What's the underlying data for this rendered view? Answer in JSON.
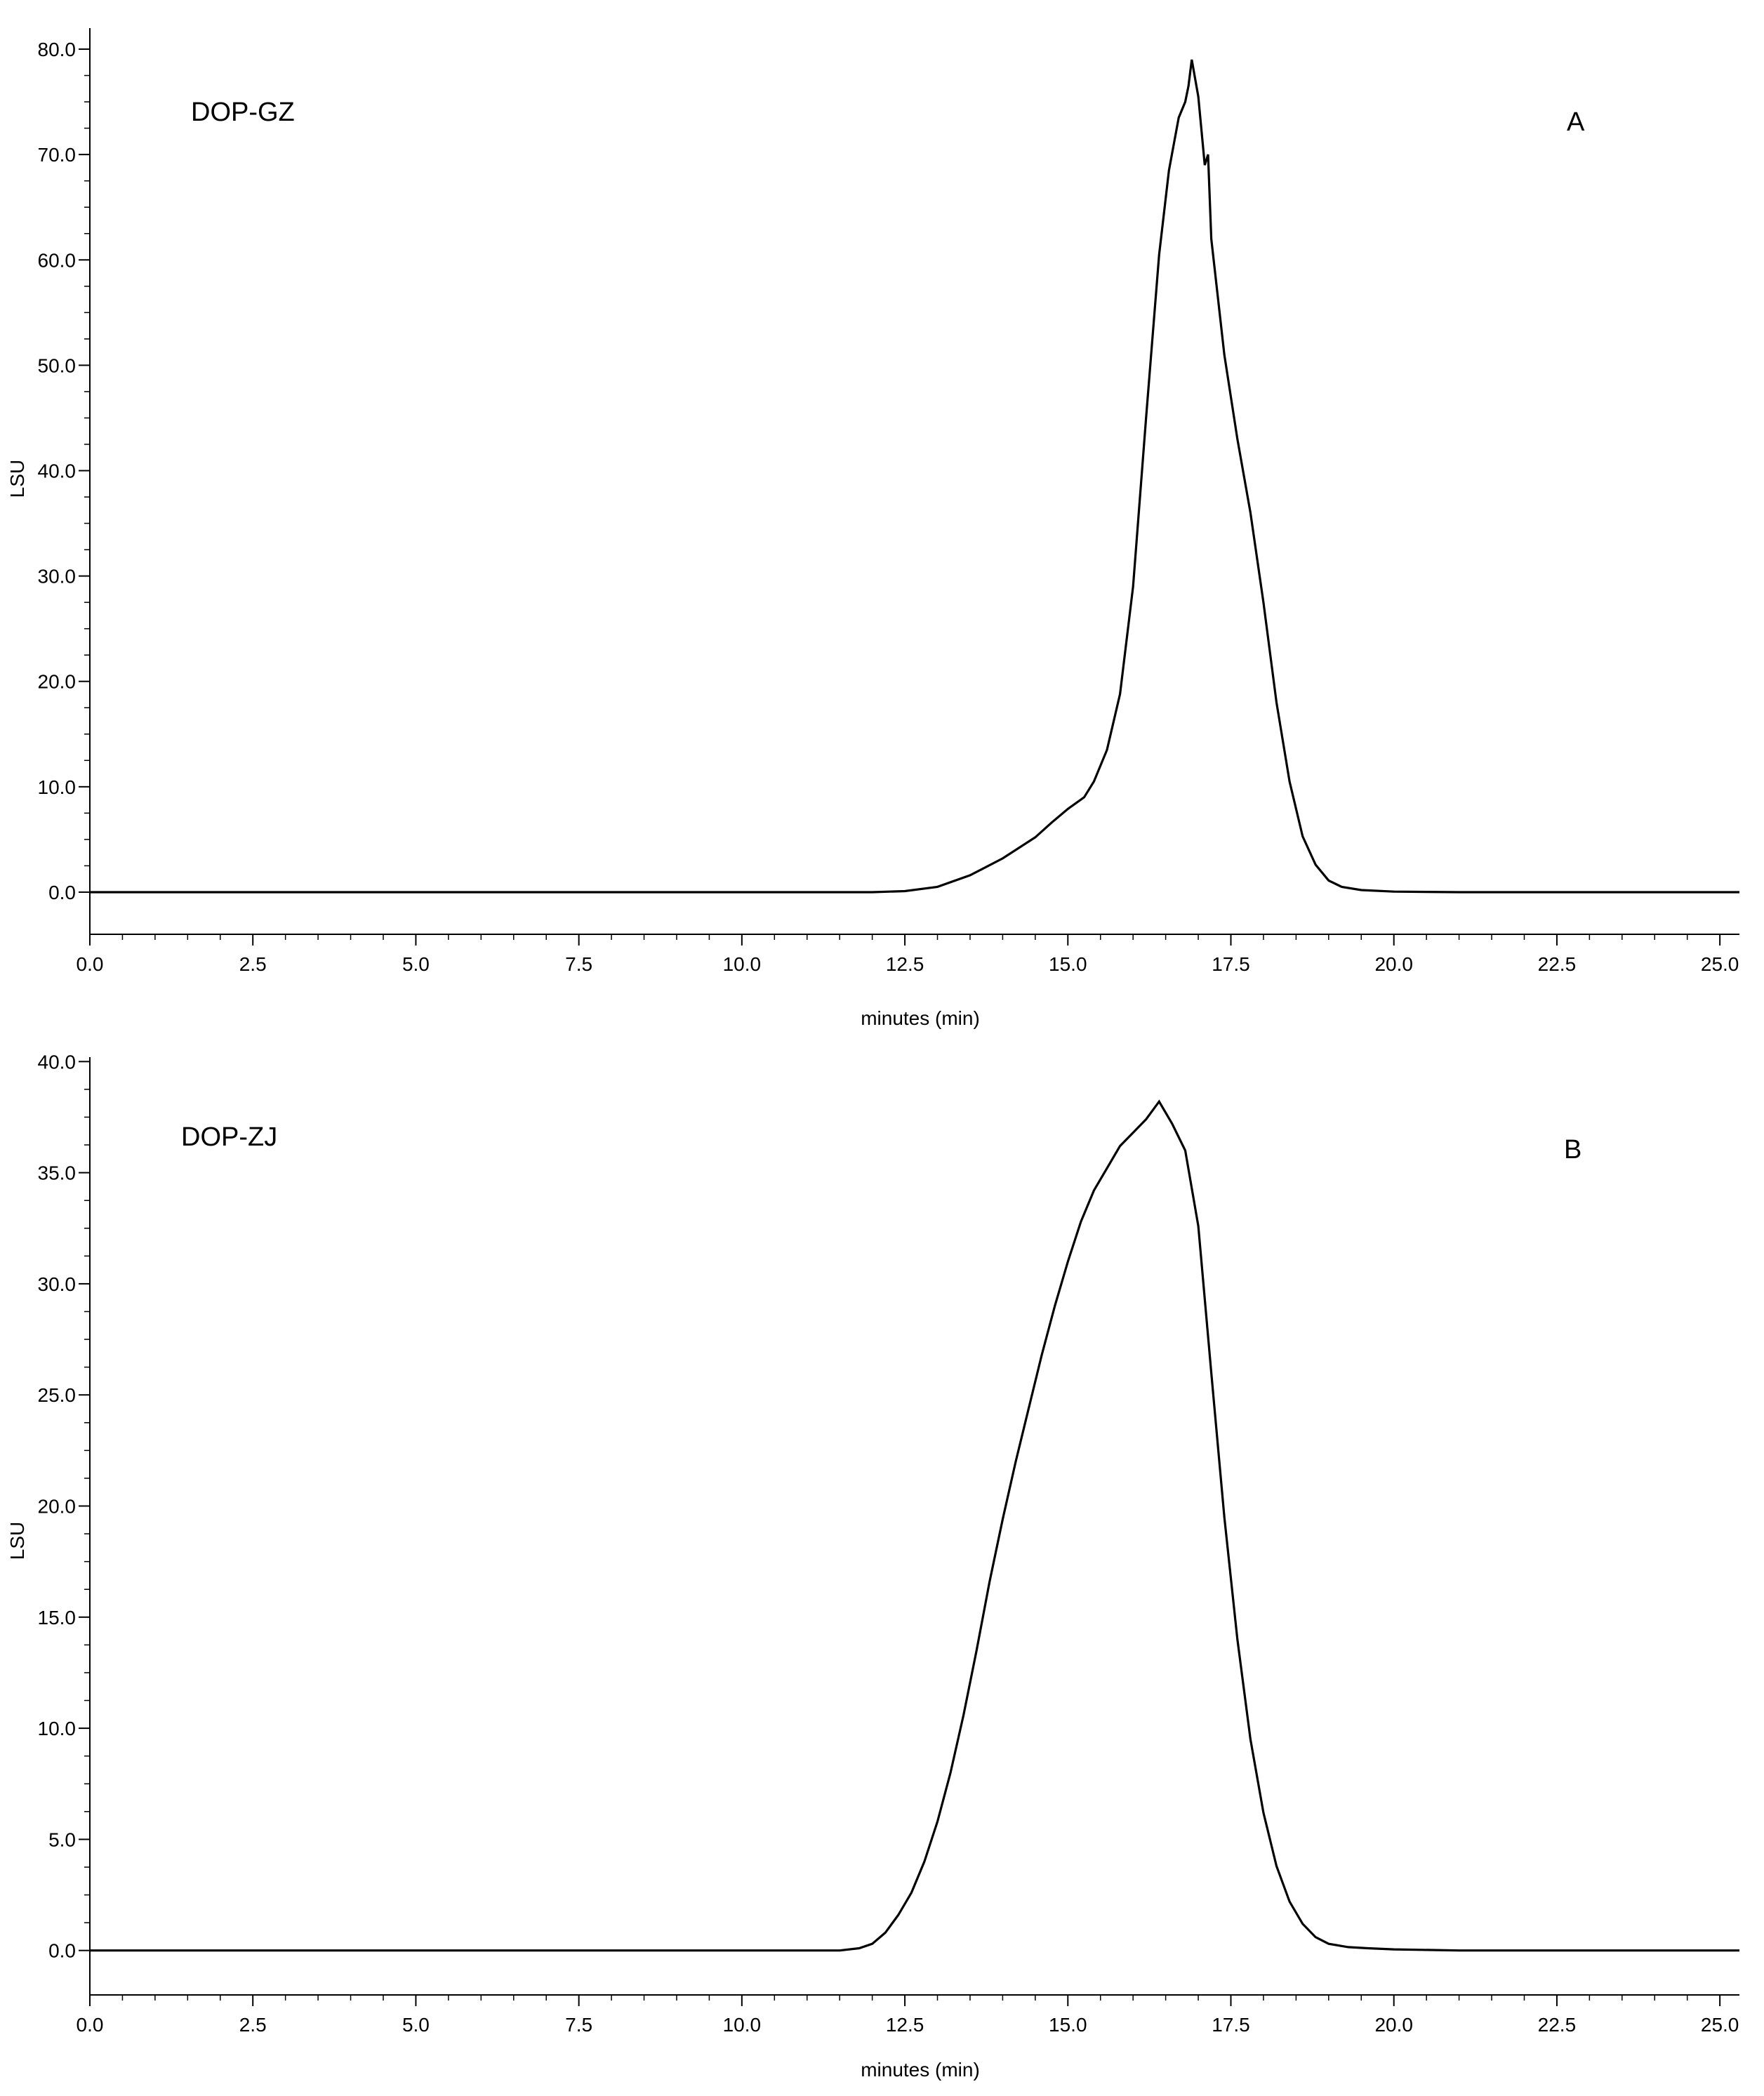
{
  "chart_data": [
    {
      "type": "line",
      "panel_label": "A",
      "annotation": "DOP-GZ",
      "xlabel": "minutes (min)",
      "ylabel": "LSU",
      "xlim": [
        0,
        25.3
      ],
      "ylim": [
        -4,
        82
      ],
      "x_ticks": [
        "0.0",
        "2.5",
        "5.0",
        "7.5",
        "10.0",
        "12.5",
        "15.0",
        "17.5",
        "20.0",
        "22.5",
        "25.0"
      ],
      "y_ticks": [
        "0.0",
        "10.0",
        "20.0",
        "30.0",
        "40.0",
        "50.0",
        "60.0",
        "70.0",
        "80.0"
      ],
      "grid": false,
      "series": [
        {
          "x": [
            0,
            12.0,
            12.5,
            13.0,
            13.5,
            14.0,
            14.5,
            14.75,
            15.0,
            15.25,
            15.4,
            15.6,
            15.8,
            16.0,
            16.2,
            16.4,
            16.55,
            16.7,
            16.8,
            16.85,
            16.9,
            17.0,
            17.1,
            17.15,
            17.2,
            17.4,
            17.6,
            17.8,
            18.0,
            18.2,
            18.4,
            18.6,
            18.8,
            19.0,
            19.2,
            19.5,
            20.0,
            21.0,
            25.3
          ],
          "y": [
            0,
            0,
            0.1,
            0.5,
            1.6,
            3.2,
            5.2,
            6.6,
            7.9,
            9.0,
            10.5,
            13.5,
            18.8,
            29.0,
            45.0,
            60.5,
            68.5,
            73.5,
            75.0,
            76.5,
            79.0,
            75.5,
            69.0,
            70.0,
            62.0,
            51.0,
            43.0,
            36.0,
            27.5,
            18.0,
            10.5,
            5.3,
            2.6,
            1.1,
            0.5,
            0.2,
            0.05,
            0,
            0
          ]
        }
      ]
    },
    {
      "type": "line",
      "panel_label": "B",
      "annotation": "DOP-ZJ",
      "xlabel": "minutes (min)",
      "ylabel": "LSU",
      "xlim": [
        0,
        25.3
      ],
      "ylim": [
        -2,
        40.2
      ],
      "x_ticks": [
        "0.0",
        "2.5",
        "5.0",
        "7.5",
        "10.0",
        "12.5",
        "15.0",
        "17.5",
        "20.0",
        "22.5",
        "25.0"
      ],
      "y_ticks": [
        "0.0",
        "5.0",
        "10.0",
        "15.0",
        "20.0",
        "25.0",
        "30.0",
        "35.0",
        "40.0"
      ],
      "grid": false,
      "series": [
        {
          "x": [
            0,
            11.5,
            11.8,
            12.0,
            12.2,
            12.4,
            12.6,
            12.8,
            13.0,
            13.2,
            13.4,
            13.6,
            13.8,
            14.0,
            14.2,
            14.4,
            14.6,
            14.8,
            15.0,
            15.2,
            15.4,
            15.6,
            15.8,
            16.0,
            16.2,
            16.4,
            16.6,
            16.8,
            17.0,
            17.2,
            17.4,
            17.6,
            17.8,
            18.0,
            18.2,
            18.4,
            18.6,
            18.8,
            19.0,
            19.3,
            19.6,
            20.0,
            21.0,
            25.3
          ],
          "y": [
            0,
            0,
            0.1,
            0.3,
            0.8,
            1.6,
            2.6,
            4.0,
            5.8,
            8.0,
            10.6,
            13.5,
            16.6,
            19.4,
            22.0,
            24.4,
            26.8,
            29.0,
            31.0,
            32.8,
            34.2,
            35.2,
            36.2,
            36.8,
            37.4,
            38.2,
            37.2,
            36.0,
            32.6,
            26.0,
            19.5,
            14.0,
            9.5,
            6.2,
            3.8,
            2.2,
            1.2,
            0.6,
            0.3,
            0.15,
            0.1,
            0.05,
            0,
            0
          ]
        }
      ]
    }
  ]
}
